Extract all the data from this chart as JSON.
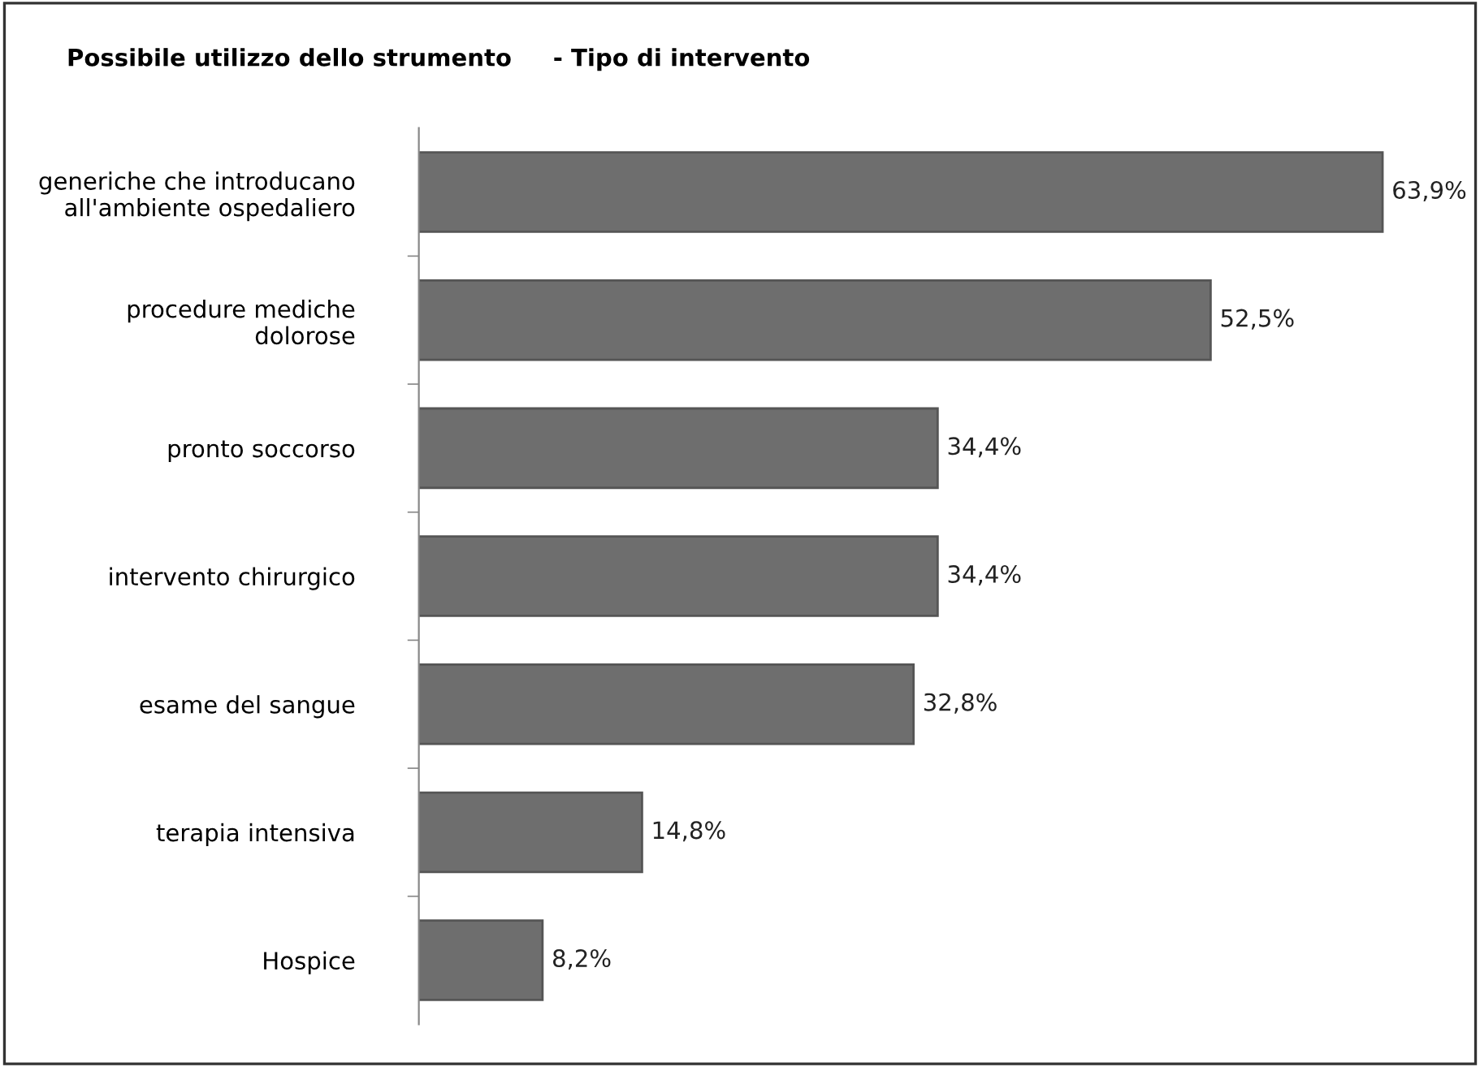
{
  "chart_data": {
    "type": "bar",
    "orientation": "horizontal",
    "title": "Possibile utilizzo dello strumento     - Tipo di intervento",
    "categories": [
      "generiche che introducano\nall'ambiente ospedaliero",
      "procedure mediche\ndolorose",
      "pronto soccorso",
      "intervento chirurgico",
      "esame del sangue",
      "terapia intensiva",
      "Hospice"
    ],
    "values": [
      63.9,
      52.5,
      34.4,
      34.4,
      32.8,
      14.8,
      8.2
    ],
    "value_labels": [
      "63,9%",
      "52,5%",
      "34,4%",
      "34,4%",
      "32,8%",
      "14,8%",
      "8,2%"
    ],
    "color": "#6e6e6e",
    "grid": false,
    "legend": false
  }
}
